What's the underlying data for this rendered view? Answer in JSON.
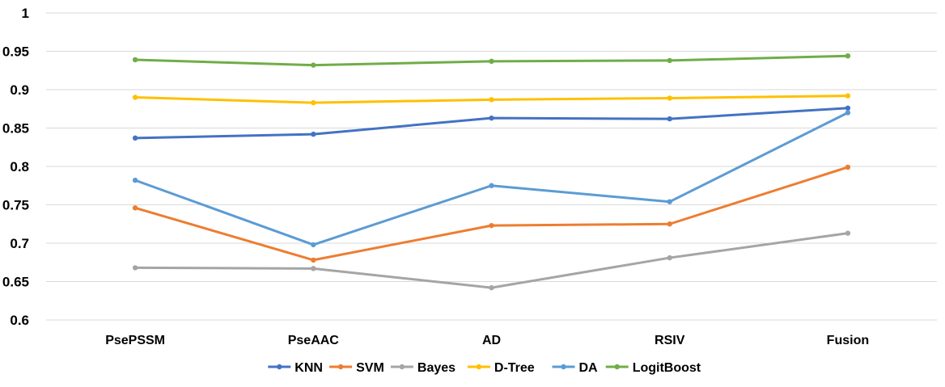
{
  "chart_data": {
    "type": "line",
    "title": "",
    "xlabel": "",
    "ylabel": "",
    "categories": [
      "PsePSSM",
      "PseAAC",
      "AD",
      "RSIV",
      "Fusion"
    ],
    "ylim": [
      0.6,
      1
    ],
    "yticks": [
      "0.6",
      "0.65",
      "0.7",
      "0.75",
      "0.8",
      "0.85",
      "0.9",
      "0.95",
      "1"
    ],
    "grid": true,
    "legend_position": "bottom",
    "series": [
      {
        "name": "KNN",
        "color": "#4472C4",
        "values": [
          0.837,
          0.842,
          0.863,
          0.862,
          0.876
        ]
      },
      {
        "name": "SVM",
        "color": "#ED7D31",
        "values": [
          0.746,
          0.678,
          0.723,
          0.725,
          0.799
        ]
      },
      {
        "name": "Bayes",
        "color": "#A5A5A5",
        "values": [
          0.668,
          0.667,
          0.642,
          0.681,
          0.713
        ]
      },
      {
        "name": "D-Tree",
        "color": "#FFC000",
        "values": [
          0.89,
          0.883,
          0.887,
          0.889,
          0.892
        ]
      },
      {
        "name": "DA",
        "color": "#5B9BD5",
        "values": [
          0.782,
          0.698,
          0.775,
          0.754,
          0.87
        ]
      },
      {
        "name": "LogitBoost",
        "color": "#70AD47",
        "values": [
          0.939,
          0.932,
          0.937,
          0.938,
          0.944
        ]
      }
    ]
  }
}
